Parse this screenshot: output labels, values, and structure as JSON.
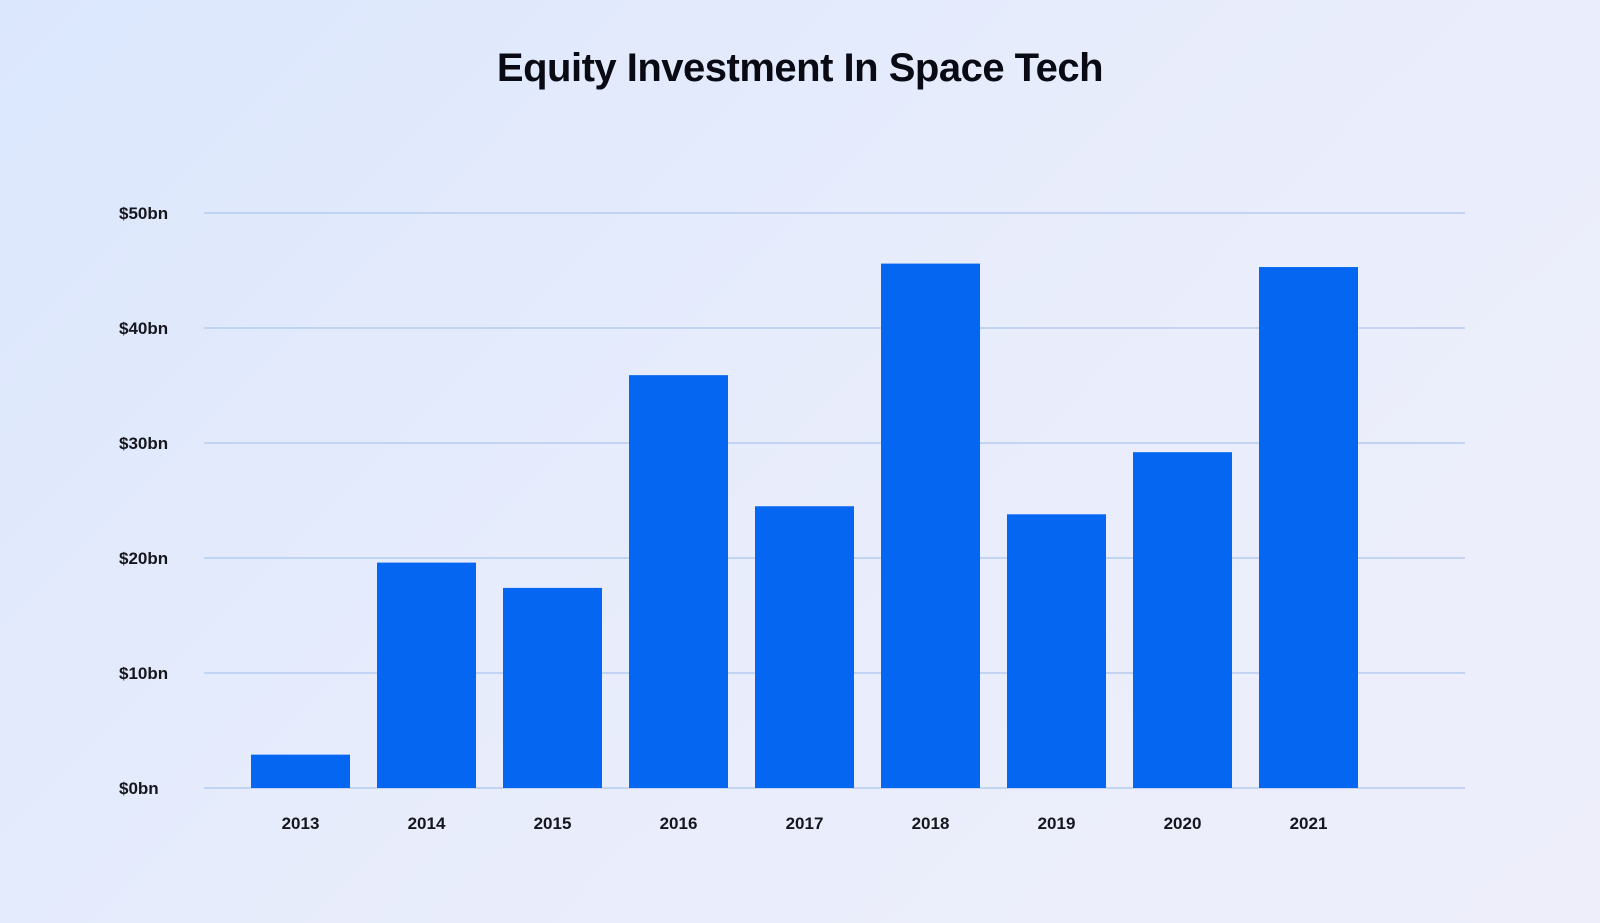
{
  "chart_data": {
    "type": "bar",
    "title": "Equity Investment In Space Tech",
    "xlabel": "",
    "ylabel": "",
    "categories": [
      "2013",
      "2014",
      "2015",
      "2016",
      "2017",
      "2018",
      "2019",
      "2020",
      "2021"
    ],
    "values": [
      2.9,
      19.6,
      17.4,
      35.9,
      24.5,
      45.6,
      23.8,
      29.2,
      45.3
    ],
    "ylim": [
      0,
      50
    ],
    "y_ticks": [
      {
        "value": 0,
        "label": "$0bn"
      },
      {
        "value": 10,
        "label": "$10bn"
      },
      {
        "value": 20,
        "label": "$20bn"
      },
      {
        "value": 30,
        "label": "$30bn"
      },
      {
        "value": 40,
        "label": "$40bn"
      },
      {
        "value": 50,
        "label": "$50bn"
      }
    ],
    "grid": true,
    "legend": "none",
    "bar_color": "#0466f1",
    "grid_color": "#b5ccf0"
  }
}
